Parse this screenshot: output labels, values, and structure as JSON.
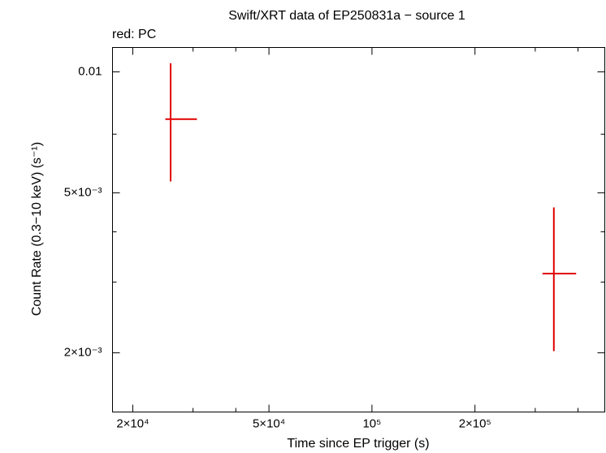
{
  "chart_data": {
    "type": "errorbar",
    "title": "Swift/XRT data of EP250831a − source 1",
    "subtitle": "red: PC",
    "x_label": "Time since EP trigger (s)",
    "y_label": "Count Rate (0.3−10 keV) (s⁻¹)",
    "x_log": true,
    "y_log": true,
    "xlim": [
      17450,
      479000
    ],
    "ylim": [
      0.001425,
      0.0115
    ],
    "xticks": [
      {
        "value": 20000,
        "label": "2×10⁴"
      },
      {
        "value": 50000,
        "label": "5×10⁴"
      },
      {
        "value": 100000,
        "label": "10⁵"
      },
      {
        "value": 200000,
        "label": "2×10⁵"
      }
    ],
    "yticks": [
      {
        "value": 0.002,
        "label": "2×10⁻³"
      },
      {
        "value": 0.005,
        "label": "5×10⁻³"
      },
      0.01
    ],
    "xminor_ticks": [
      30000,
      40000,
      300000,
      400000
    ],
    "yminor_ticks": [
      0.003,
      0.004,
      0.007
    ],
    "series": [
      {
        "name": "PC",
        "color": "#e00000",
        "x": [
          25800,
          340000
        ],
        "x_low": [
          24900,
          315000
        ],
        "x_high": [
          30800,
          395000
        ],
        "values": [
          0.00763,
          0.00315
        ],
        "y_low": [
          0.00534,
          0.00202
        ],
        "y_high": [
          0.0105,
          0.0046
        ]
      }
    ]
  }
}
